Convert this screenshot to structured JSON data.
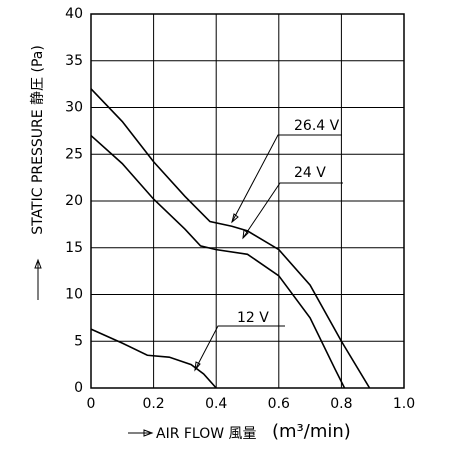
{
  "chart_data": {
    "type": "line",
    "xlabel": "AIR FLOW 風量",
    "xunit": "(m³/min)",
    "ylabel": "STATIC PRESSURE 静圧 (Pa)",
    "xlim": [
      0,
      1
    ],
    "ylim": [
      0,
      40
    ],
    "xticks": [
      0,
      0.2,
      0.4,
      0.6,
      0.8,
      {
        "value": 1,
        "label": "1.0"
      }
    ],
    "yticks": [
      0,
      5,
      10,
      15,
      20,
      25,
      30,
      35,
      40
    ],
    "grid": true,
    "series": [
      {
        "name": "26.4 V",
        "color": "#000000",
        "x": [
          0,
          0.1,
          0.2,
          0.3,
          0.38,
          0.45,
          0.5,
          0.6,
          0.7,
          0.8,
          0.89
        ],
        "values": [
          32,
          28.5,
          24.2,
          20.5,
          17.8,
          17.3,
          16.8,
          14.8,
          11,
          5,
          0
        ]
      },
      {
        "name": "24 V",
        "color": "#000000",
        "x": [
          0,
          0.1,
          0.2,
          0.3,
          0.35,
          0.4,
          0.5,
          0.6,
          0.7,
          0.78,
          0.81
        ],
        "values": [
          27,
          24,
          20.2,
          17,
          15.2,
          14.8,
          14.3,
          12,
          7.5,
          2,
          0
        ]
      },
      {
        "name": "12 V",
        "color": "#000000",
        "x": [
          0,
          0.1,
          0.18,
          0.25,
          0.32,
          0.36,
          0.4
        ],
        "values": [
          6.3,
          4.8,
          3.5,
          3.3,
          2.5,
          1.5,
          0
        ]
      }
    ]
  }
}
